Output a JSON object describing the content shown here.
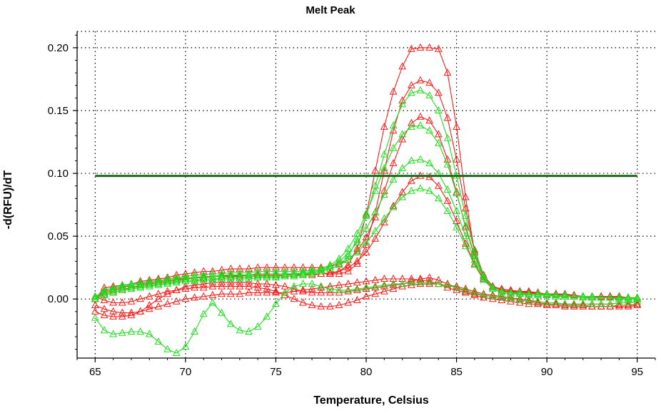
{
  "chart_data": {
    "type": "line",
    "title": "Melt Peak",
    "xlabel": "Temperature, Celsius",
    "ylabel": "-d(RFU)/dT",
    "xlim": [
      64,
      96
    ],
    "ylim": [
      -0.047,
      0.213
    ],
    "x_ticks": [
      "65",
      "70",
      "75",
      "80",
      "85",
      "90",
      "95"
    ],
    "y_ticks": [
      "0.00",
      "0.05",
      "0.10",
      "0.15",
      "0.20"
    ],
    "grid": true,
    "legend": "none",
    "marker": "triangle",
    "threshold": {
      "value": 0.098,
      "x_range": [
        65,
        95
      ],
      "color": "#1a6b1a"
    },
    "x": [
      65,
      65.5,
      66,
      66.5,
      67,
      67.5,
      68,
      68.5,
      69,
      69.5,
      70,
      70.5,
      71,
      71.5,
      72,
      72.5,
      73,
      73.5,
      74,
      74.5,
      75,
      75.5,
      76,
      76.5,
      77,
      77.5,
      78,
      78.5,
      79,
      79.5,
      80,
      80.5,
      81,
      81.5,
      82,
      82.5,
      83,
      83.5,
      84,
      84.5,
      85,
      85.5,
      86,
      86.5,
      87,
      87.5,
      88,
      88.5,
      89,
      89.5,
      90,
      90.5,
      91,
      91.5,
      92,
      92.5,
      93,
      93.5,
      94,
      94.5,
      95
    ],
    "series": [
      {
        "color": "#ff1a1a",
        "values": [
          0.0,
          0.005,
          0.007,
          0.009,
          0.011,
          0.012,
          0.013,
          0.014,
          0.015,
          0.016,
          0.016,
          0.017,
          0.017,
          0.018,
          0.018,
          0.018,
          0.018,
          0.019,
          0.019,
          0.019,
          0.019,
          0.019,
          0.019,
          0.019,
          0.019,
          0.02,
          0.02,
          0.022,
          0.027,
          0.04,
          0.067,
          0.102,
          0.137,
          0.165,
          0.185,
          0.199,
          0.2,
          0.2,
          0.199,
          0.18,
          0.137,
          0.081,
          0.037,
          0.016,
          0.01,
          0.008,
          0.007,
          0.006,
          0.006,
          0.005,
          0.004,
          0.004,
          0.004,
          0.003,
          0.002,
          0.002,
          0.002,
          0.002,
          0.002,
          0.001,
          0.001
        ]
      },
      {
        "color": "#ff1a1a",
        "values": [
          0.0,
          0.006,
          0.008,
          0.01,
          0.011,
          0.012,
          0.013,
          0.014,
          0.015,
          0.016,
          0.016,
          0.017,
          0.017,
          0.018,
          0.018,
          0.018,
          0.019,
          0.019,
          0.019,
          0.019,
          0.019,
          0.019,
          0.019,
          0.019,
          0.02,
          0.02,
          0.02,
          0.02,
          0.022,
          0.028,
          0.043,
          0.069,
          0.102,
          0.134,
          0.158,
          0.17,
          0.174,
          0.172,
          0.164,
          0.144,
          0.111,
          0.072,
          0.039,
          0.019,
          0.01,
          0.007,
          0.006,
          0.006,
          0.005,
          0.005,
          0.004,
          0.004,
          0.003,
          0.003,
          0.002,
          0.002,
          0.002,
          0.002,
          0.002,
          0.001,
          0.001
        ]
      },
      {
        "color": "#ff1a1a",
        "values": [
          0.0,
          0.009,
          0.01,
          0.011,
          0.012,
          0.014,
          0.015,
          0.016,
          0.017,
          0.019,
          0.02,
          0.021,
          0.022,
          0.022,
          0.023,
          0.024,
          0.024,
          0.024,
          0.025,
          0.025,
          0.025,
          0.025,
          0.025,
          0.025,
          0.025,
          0.025,
          0.026,
          0.028,
          0.031,
          0.038,
          0.049,
          0.065,
          0.086,
          0.108,
          0.127,
          0.14,
          0.145,
          0.142,
          0.131,
          0.111,
          0.085,
          0.057,
          0.034,
          0.018,
          0.009,
          0.006,
          0.006,
          0.005,
          0.005,
          0.004,
          0.004,
          0.004,
          0.003,
          0.002,
          0.002,
          0.002,
          0.002,
          0.002,
          0.001,
          0.001,
          0.001
        ]
      },
      {
        "color": "#ff1a1a",
        "values": [
          0.0,
          0.003,
          0.005,
          0.007,
          0.009,
          0.011,
          0.012,
          0.013,
          0.014,
          0.015,
          0.016,
          0.017,
          0.017,
          0.018,
          0.018,
          0.019,
          0.019,
          0.019,
          0.019,
          0.019,
          0.019,
          0.019,
          0.02,
          0.02,
          0.02,
          0.02,
          0.021,
          0.022,
          0.025,
          0.03,
          0.037,
          0.048,
          0.061,
          0.074,
          0.085,
          0.094,
          0.098,
          0.097,
          0.09,
          0.078,
          0.062,
          0.044,
          0.028,
          0.016,
          0.009,
          0.006,
          0.005,
          0.005,
          0.004,
          0.004,
          0.004,
          0.003,
          0.003,
          0.002,
          0.002,
          0.002,
          0.001,
          0.001,
          0.001,
          0.001,
          0.001
        ]
      },
      {
        "color": "#ff1a1a",
        "values": [
          -0.01,
          -0.013,
          -0.014,
          -0.014,
          -0.013,
          -0.01,
          -0.005,
          0.0,
          0.004,
          0.007,
          0.01,
          0.011,
          0.012,
          0.013,
          0.013,
          0.013,
          0.013,
          0.013,
          0.012,
          0.012,
          0.011,
          0.01,
          0.008,
          0.006,
          0.005,
          0.005,
          0.005,
          0.005,
          0.006,
          0.007,
          0.008,
          0.009,
          0.01,
          0.011,
          0.012,
          0.014,
          0.016,
          0.017,
          0.015,
          0.012,
          0.009,
          0.006,
          0.004,
          0.003,
          0.002,
          0.001,
          0.0,
          -0.001,
          -0.002,
          -0.003,
          -0.004,
          -0.004,
          -0.005,
          -0.005,
          -0.005,
          -0.006,
          -0.006,
          -0.006,
          -0.006,
          -0.006,
          -0.005
        ]
      },
      {
        "color": "#ff1a1a",
        "values": [
          -0.005,
          -0.008,
          -0.01,
          -0.011,
          -0.011,
          -0.01,
          -0.008,
          -0.006,
          -0.004,
          -0.002,
          0.0,
          0.001,
          0.002,
          0.003,
          0.004,
          0.004,
          0.004,
          0.005,
          0.005,
          0.005,
          0.005,
          0.005,
          0.006,
          0.007,
          0.008,
          0.009,
          0.01,
          0.011,
          0.012,
          0.013,
          0.014,
          0.015,
          0.016,
          0.016,
          0.016,
          0.016,
          0.015,
          0.014,
          0.012,
          0.009,
          0.007,
          0.005,
          0.003,
          0.001,
          0.0,
          -0.001,
          -0.002,
          -0.003,
          -0.004,
          -0.004,
          -0.005,
          -0.005,
          -0.006,
          -0.006,
          -0.006,
          -0.006,
          -0.006,
          -0.006,
          -0.005,
          -0.005,
          -0.004
        ]
      },
      {
        "color": "#ff1a1a",
        "values": [
          0.002,
          -0.001,
          -0.003,
          -0.003,
          -0.002,
          0.0,
          0.002,
          0.004,
          0.006,
          0.007,
          0.008,
          0.009,
          0.009,
          0.01,
          0.01,
          0.01,
          0.01,
          0.01,
          0.009,
          0.008,
          0.006,
          0.003,
          0.0,
          -0.003,
          -0.005,
          -0.006,
          -0.006,
          -0.005,
          -0.003,
          -0.001,
          0.002,
          0.004,
          0.006,
          0.008,
          0.01,
          0.011,
          0.012,
          0.012,
          0.012,
          0.011,
          0.01,
          0.008,
          0.006,
          0.004,
          0.003,
          0.002,
          0.001,
          0.0,
          -0.001,
          -0.002,
          -0.003,
          -0.003,
          -0.004,
          -0.004,
          -0.004,
          -0.004,
          -0.004,
          -0.004,
          -0.003,
          -0.003,
          -0.002
        ]
      },
      {
        "color": "#22dd22",
        "values": [
          0.0,
          0.007,
          0.009,
          0.011,
          0.012,
          0.013,
          0.014,
          0.015,
          0.016,
          0.017,
          0.018,
          0.019,
          0.019,
          0.02,
          0.02,
          0.021,
          0.021,
          0.021,
          0.022,
          0.022,
          0.022,
          0.022,
          0.022,
          0.022,
          0.023,
          0.023,
          0.024,
          0.027,
          0.034,
          0.047,
          0.066,
          0.09,
          0.115,
          0.138,
          0.155,
          0.164,
          0.166,
          0.162,
          0.15,
          0.128,
          0.098,
          0.066,
          0.038,
          0.018,
          0.009,
          0.006,
          0.005,
          0.005,
          0.004,
          0.004,
          0.004,
          0.003,
          0.003,
          0.002,
          0.002,
          0.002,
          0.001,
          0.001,
          0.001,
          0.001,
          0.001
        ]
      },
      {
        "color": "#22dd22",
        "values": [
          0.002,
          0.006,
          0.008,
          0.01,
          0.011,
          0.012,
          0.013,
          0.014,
          0.015,
          0.016,
          0.017,
          0.017,
          0.018,
          0.018,
          0.019,
          0.019,
          0.019,
          0.019,
          0.02,
          0.02,
          0.02,
          0.02,
          0.02,
          0.021,
          0.022,
          0.024,
          0.027,
          0.032,
          0.04,
          0.052,
          0.068,
          0.086,
          0.104,
          0.12,
          0.131,
          0.137,
          0.138,
          0.134,
          0.124,
          0.107,
          0.084,
          0.058,
          0.035,
          0.018,
          0.009,
          0.006,
          0.005,
          0.005,
          0.004,
          0.004,
          0.003,
          0.003,
          0.003,
          0.002,
          0.002,
          0.002,
          0.001,
          0.001,
          0.001,
          0.001,
          0.0
        ]
      },
      {
        "color": "#22dd22",
        "values": [
          0.001,
          0.004,
          0.006,
          0.008,
          0.009,
          0.01,
          0.011,
          0.012,
          0.013,
          0.014,
          0.015,
          0.015,
          0.016,
          0.016,
          0.017,
          0.017,
          0.017,
          0.018,
          0.018,
          0.018,
          0.018,
          0.019,
          0.019,
          0.02,
          0.021,
          0.023,
          0.026,
          0.03,
          0.036,
          0.045,
          0.056,
          0.069,
          0.083,
          0.095,
          0.104,
          0.11,
          0.111,
          0.108,
          0.1,
          0.087,
          0.07,
          0.05,
          0.031,
          0.017,
          0.009,
          0.006,
          0.005,
          0.004,
          0.004,
          0.004,
          0.003,
          0.003,
          0.002,
          0.002,
          0.002,
          0.001,
          0.001,
          0.001,
          0.001,
          0.0,
          0.0
        ]
      },
      {
        "color": "#22dd22",
        "values": [
          0.0,
          0.003,
          0.005,
          0.007,
          0.008,
          0.009,
          0.01,
          0.011,
          0.012,
          0.013,
          0.014,
          0.014,
          0.015,
          0.015,
          0.016,
          0.016,
          0.016,
          0.016,
          0.017,
          0.017,
          0.017,
          0.018,
          0.018,
          0.019,
          0.02,
          0.022,
          0.024,
          0.027,
          0.031,
          0.037,
          0.045,
          0.054,
          0.064,
          0.073,
          0.081,
          0.086,
          0.088,
          0.086,
          0.08,
          0.07,
          0.057,
          0.042,
          0.027,
          0.015,
          0.008,
          0.005,
          0.004,
          0.004,
          0.003,
          0.003,
          0.003,
          0.002,
          0.002,
          0.002,
          0.001,
          0.001,
          0.001,
          0.001,
          0.0,
          0.0,
          0.0
        ]
      },
      {
        "color": "#22dd22",
        "values": [
          -0.015,
          -0.025,
          -0.028,
          -0.027,
          -0.026,
          -0.026,
          -0.028,
          -0.034,
          -0.04,
          -0.043,
          -0.038,
          -0.026,
          -0.012,
          -0.003,
          -0.011,
          -0.02,
          -0.025,
          -0.026,
          -0.022,
          -0.014,
          -0.004,
          0.005,
          0.01,
          0.012,
          0.012,
          0.01,
          0.008,
          0.007,
          0.007,
          0.008,
          0.009,
          0.01,
          0.011,
          0.012,
          0.012,
          0.013,
          0.013,
          0.013,
          0.012,
          0.011,
          0.009,
          0.007,
          0.005,
          0.003,
          0.002,
          0.001,
          0.0,
          -0.001,
          -0.002,
          -0.002,
          -0.003,
          -0.003,
          -0.004,
          -0.004,
          -0.004,
          -0.004,
          -0.004,
          -0.004,
          -0.003,
          -0.003,
          -0.002
        ]
      }
    ]
  }
}
